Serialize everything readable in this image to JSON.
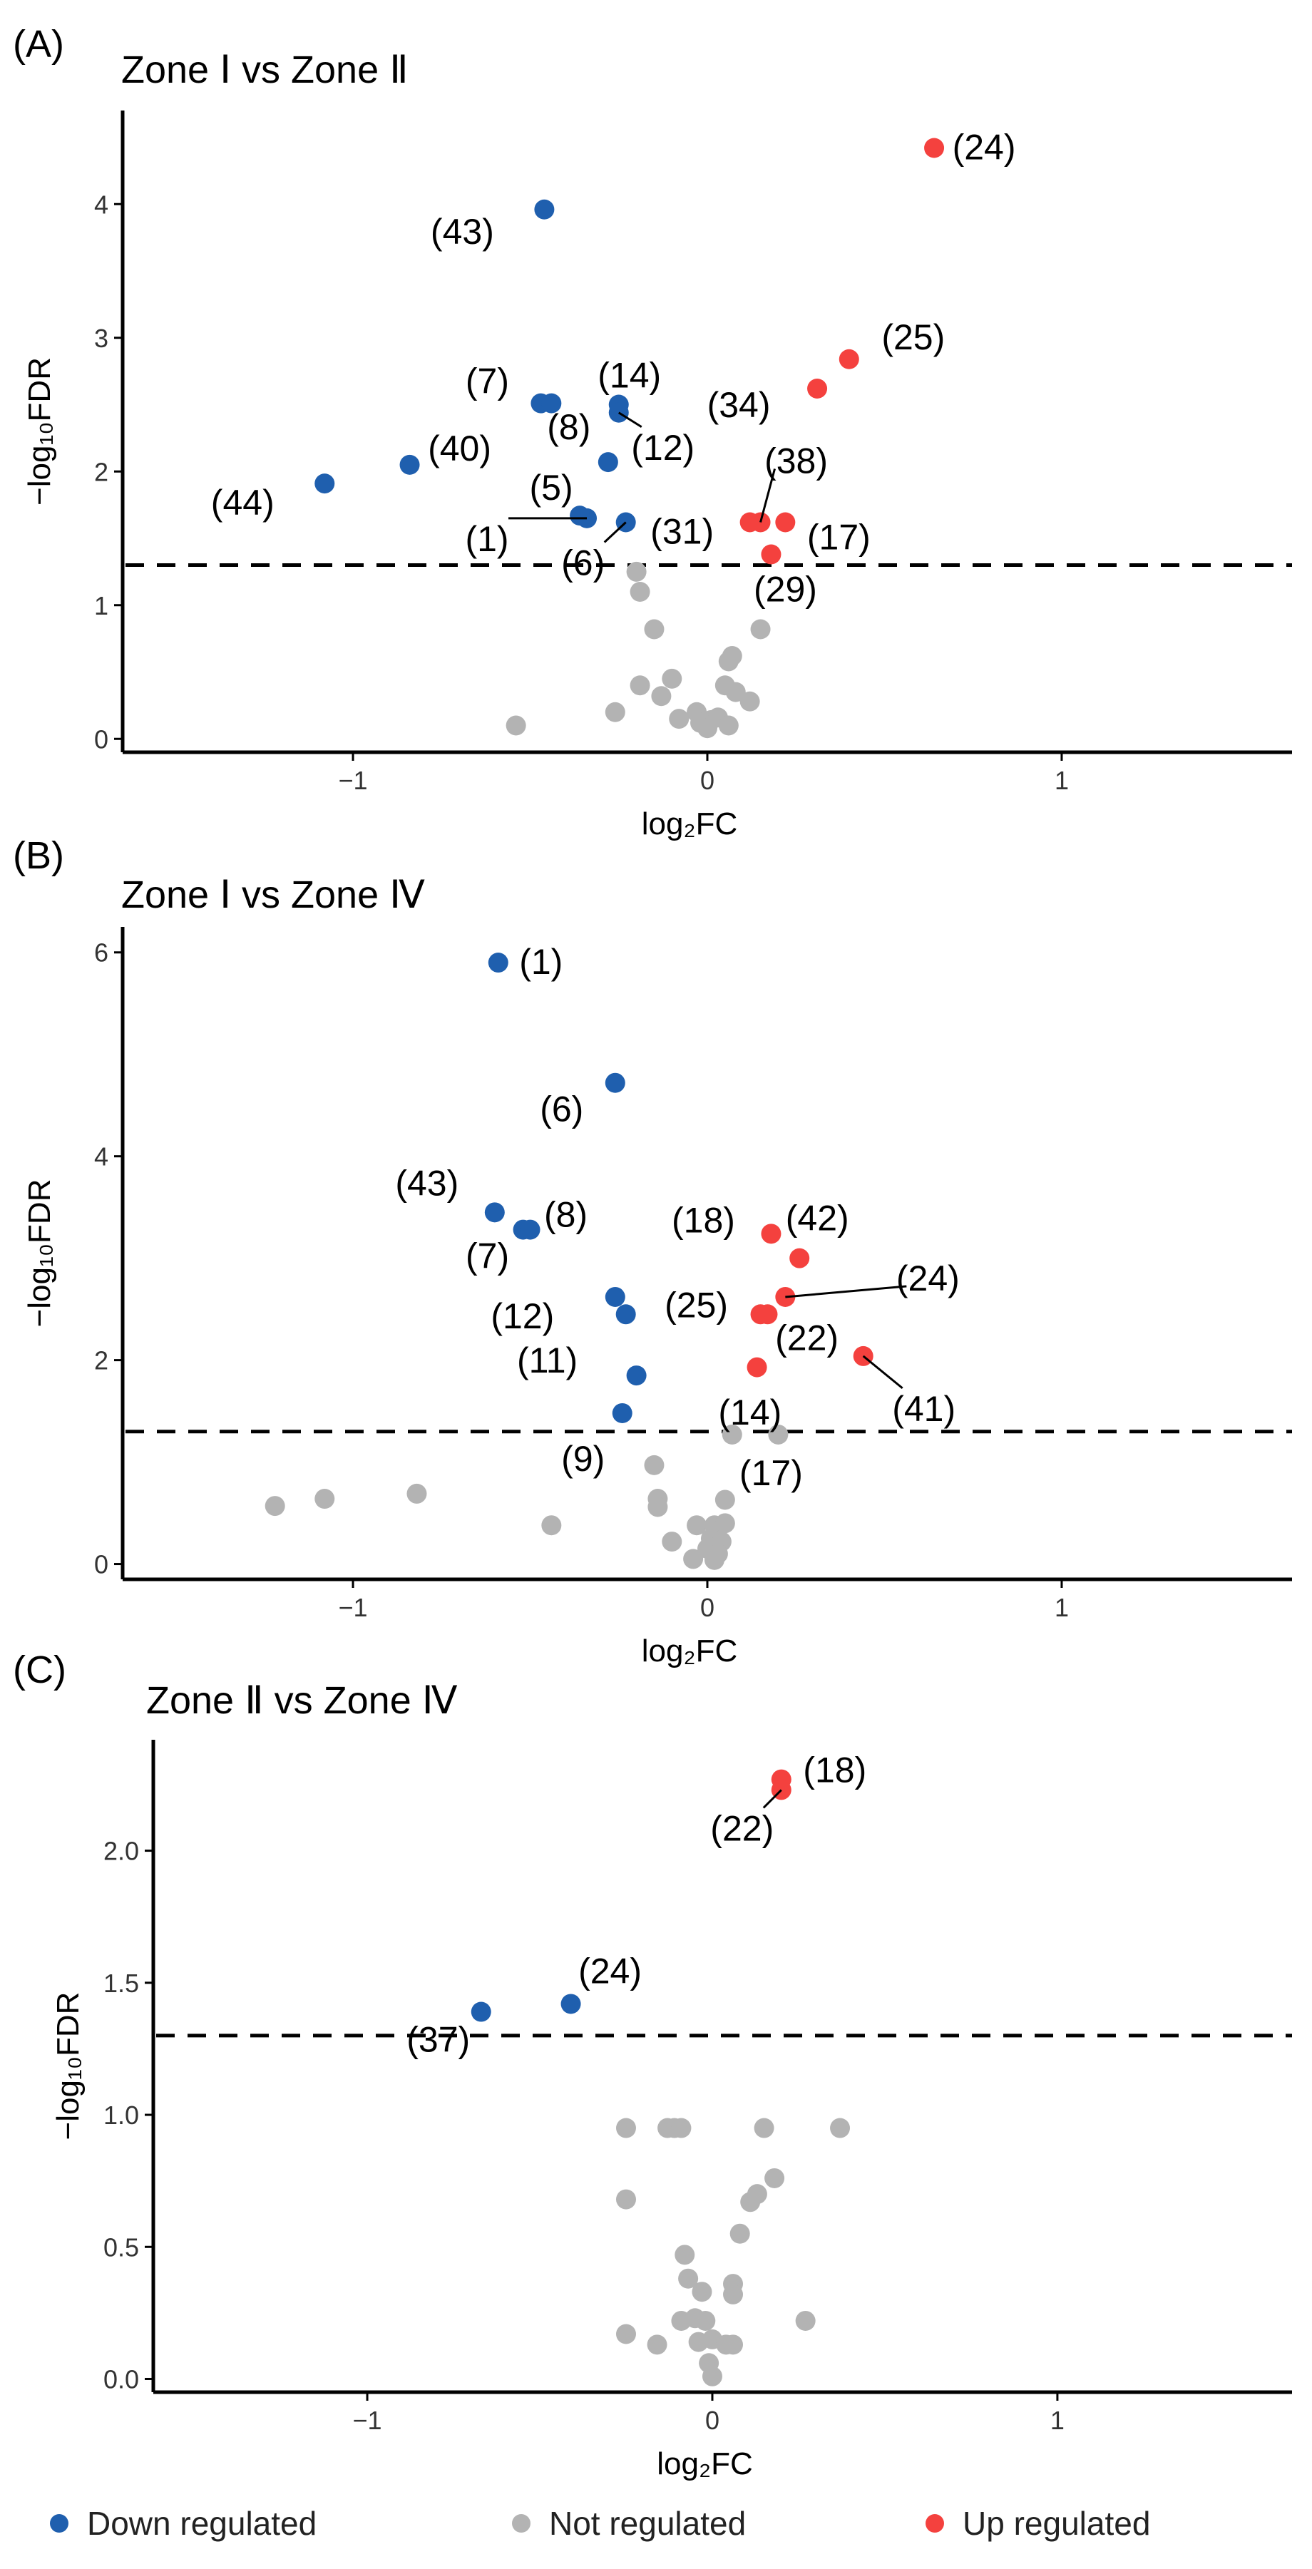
{
  "colors": {
    "down": "#1f5fae",
    "not": "#b3b3b3",
    "up": "#f4413e",
    "axis": "#000000"
  },
  "legend": {
    "down_label": "Down regulated",
    "not_label": "Not regulated",
    "up_label": "Up regulated"
  },
  "chart_data": [
    {
      "type": "scatter",
      "panel_label": "(A)",
      "title": "Zone Ⅰ  vs Zone Ⅱ",
      "xlabel": "log₂FC",
      "ylabel": "−log₁₀FDR",
      "xlim": [
        -1.65,
        1.65
      ],
      "ylim": [
        -0.1,
        4.7
      ],
      "xticks": [
        -1,
        0,
        1
      ],
      "yticks": [
        0,
        1,
        2,
        3,
        4
      ],
      "threshold": 1.3,
      "points": [
        {
          "x": 0.64,
          "y": 4.42,
          "cls": "up",
          "label": "(24)"
        },
        {
          "x": -0.46,
          "y": 3.96,
          "cls": "down",
          "label": "(43)"
        },
        {
          "x": 0.4,
          "y": 2.84,
          "cls": "up",
          "label": "(25)"
        },
        {
          "x": 0.31,
          "y": 2.62,
          "cls": "up",
          "label": "(34)"
        },
        {
          "x": -0.47,
          "y": 2.51,
          "cls": "down",
          "label": "(7)"
        },
        {
          "x": -0.44,
          "y": 2.51,
          "cls": "down",
          "label": ""
        },
        {
          "x": -0.25,
          "y": 2.5,
          "cls": "down",
          "label": "(14)"
        },
        {
          "x": -0.25,
          "y": 2.44,
          "cls": "down",
          "label": "(12)"
        },
        {
          "x": -0.28,
          "y": 2.07,
          "cls": "down",
          "label": "(8)"
        },
        {
          "x": -0.84,
          "y": 2.05,
          "cls": "down",
          "label": "(40)"
        },
        {
          "x": -1.08,
          "y": 1.91,
          "cls": "down",
          "label": "(44)"
        },
        {
          "x": -0.34,
          "y": 1.65,
          "cls": "down",
          "label": "(1)"
        },
        {
          "x": -0.36,
          "y": 1.67,
          "cls": "down",
          "label": "(5)"
        },
        {
          "x": -0.23,
          "y": 1.62,
          "cls": "down",
          "label": "(6)"
        },
        {
          "x": 0.12,
          "y": 1.62,
          "cls": "up",
          "label": "(31)"
        },
        {
          "x": 0.15,
          "y": 1.62,
          "cls": "up",
          "label": "(38)"
        },
        {
          "x": 0.22,
          "y": 1.62,
          "cls": "up",
          "label": "(17)"
        },
        {
          "x": 0.18,
          "y": 1.38,
          "cls": "up",
          "label": "(29)"
        },
        {
          "x": -0.2,
          "y": 1.25,
          "cls": "not",
          "label": ""
        },
        {
          "x": -0.19,
          "y": 1.1,
          "cls": "not",
          "label": ""
        },
        {
          "x": -0.15,
          "y": 0.82,
          "cls": "not",
          "label": ""
        },
        {
          "x": 0.15,
          "y": 0.82,
          "cls": "not",
          "label": ""
        },
        {
          "x": 0.06,
          "y": 0.58,
          "cls": "not",
          "label": ""
        },
        {
          "x": 0.07,
          "y": 0.62,
          "cls": "not",
          "label": ""
        },
        {
          "x": -0.1,
          "y": 0.45,
          "cls": "not",
          "label": ""
        },
        {
          "x": -0.19,
          "y": 0.4,
          "cls": "not",
          "label": ""
        },
        {
          "x": 0.05,
          "y": 0.4,
          "cls": "not",
          "label": ""
        },
        {
          "x": -0.13,
          "y": 0.32,
          "cls": "not",
          "label": ""
        },
        {
          "x": 0.08,
          "y": 0.35,
          "cls": "not",
          "label": ""
        },
        {
          "x": 0.12,
          "y": 0.28,
          "cls": "not",
          "label": ""
        },
        {
          "x": -0.26,
          "y": 0.2,
          "cls": "not",
          "label": ""
        },
        {
          "x": -0.08,
          "y": 0.15,
          "cls": "not",
          "label": ""
        },
        {
          "x": -0.03,
          "y": 0.2,
          "cls": "not",
          "label": ""
        },
        {
          "x": -0.02,
          "y": 0.12,
          "cls": "not",
          "label": ""
        },
        {
          "x": 0.01,
          "y": 0.14,
          "cls": "not",
          "label": ""
        },
        {
          "x": 0.03,
          "y": 0.16,
          "cls": "not",
          "label": ""
        },
        {
          "x": 0.06,
          "y": 0.1,
          "cls": "not",
          "label": ""
        },
        {
          "x": -0.54,
          "y": 0.1,
          "cls": "not",
          "label": ""
        },
        {
          "x": 0.0,
          "y": 0.08,
          "cls": "not",
          "label": ""
        }
      ]
    },
    {
      "type": "scatter",
      "panel_label": "(B)",
      "title": "Zone Ⅰ  vs Zone Ⅳ",
      "xlabel": "log₂FC",
      "ylabel": "−log₁₀FDR",
      "xlim": [
        -1.65,
        1.65
      ],
      "ylim": [
        -0.15,
        6.25
      ],
      "xticks": [
        -1,
        0,
        1
      ],
      "yticks": [
        0,
        2,
        4,
        6
      ],
      "threshold": 1.3,
      "points": [
        {
          "x": -0.59,
          "y": 5.9,
          "cls": "down",
          "label": "(1)"
        },
        {
          "x": -0.26,
          "y": 4.72,
          "cls": "down",
          "label": "(6)"
        },
        {
          "x": -0.6,
          "y": 3.45,
          "cls": "down",
          "label": "(43)"
        },
        {
          "x": -0.52,
          "y": 3.28,
          "cls": "down",
          "label": "(7)"
        },
        {
          "x": -0.5,
          "y": 3.28,
          "cls": "down",
          "label": "(8)"
        },
        {
          "x": 0.18,
          "y": 3.24,
          "cls": "up",
          "label": "(18)"
        },
        {
          "x": 0.26,
          "y": 3.0,
          "cls": "up",
          "label": "(42)"
        },
        {
          "x": -0.26,
          "y": 2.62,
          "cls": "down",
          "label": "(12)"
        },
        {
          "x": 0.22,
          "y": 2.62,
          "cls": "up",
          "label": "(24)"
        },
        {
          "x": -0.23,
          "y": 2.45,
          "cls": "down",
          "label": ""
        },
        {
          "x": 0.15,
          "y": 2.45,
          "cls": "up",
          "label": "(25)"
        },
        {
          "x": 0.17,
          "y": 2.45,
          "cls": "up",
          "label": ""
        },
        {
          "x": 0.44,
          "y": 2.04,
          "cls": "up",
          "label": "(41)"
        },
        {
          "x": 0.14,
          "y": 1.93,
          "cls": "up",
          "label": "(22)"
        },
        {
          "x": -0.2,
          "y": 1.85,
          "cls": "down",
          "label": "(11)"
        },
        {
          "x": -0.24,
          "y": 1.48,
          "cls": "down",
          "label": "(9)"
        },
        {
          "x": 0.07,
          "y": 1.27,
          "cls": "not",
          "label": "(14)"
        },
        {
          "x": 0.2,
          "y": 1.27,
          "cls": "not",
          "label": "(17)"
        },
        {
          "x": -0.15,
          "y": 0.97,
          "cls": "not",
          "label": ""
        },
        {
          "x": -1.22,
          "y": 0.57,
          "cls": "not",
          "label": ""
        },
        {
          "x": -1.08,
          "y": 0.64,
          "cls": "not",
          "label": ""
        },
        {
          "x": -0.82,
          "y": 0.69,
          "cls": "not",
          "label": ""
        },
        {
          "x": -0.14,
          "y": 0.64,
          "cls": "not",
          "label": ""
        },
        {
          "x": -0.14,
          "y": 0.56,
          "cls": "not",
          "label": ""
        },
        {
          "x": 0.05,
          "y": 0.63,
          "cls": "not",
          "label": ""
        },
        {
          "x": -0.44,
          "y": 0.38,
          "cls": "not",
          "label": ""
        },
        {
          "x": -0.03,
          "y": 0.38,
          "cls": "not",
          "label": ""
        },
        {
          "x": 0.02,
          "y": 0.38,
          "cls": "not",
          "label": ""
        },
        {
          "x": 0.05,
          "y": 0.4,
          "cls": "not",
          "label": ""
        },
        {
          "x": -0.1,
          "y": 0.22,
          "cls": "not",
          "label": ""
        },
        {
          "x": 0.01,
          "y": 0.25,
          "cls": "not",
          "label": ""
        },
        {
          "x": 0.04,
          "y": 0.22,
          "cls": "not",
          "label": ""
        },
        {
          "x": 0.0,
          "y": 0.15,
          "cls": "not",
          "label": ""
        },
        {
          "x": 0.03,
          "y": 0.1,
          "cls": "not",
          "label": ""
        },
        {
          "x": -0.04,
          "y": 0.05,
          "cls": "not",
          "label": ""
        },
        {
          "x": 0.02,
          "y": 0.04,
          "cls": "not",
          "label": ""
        }
      ]
    },
    {
      "type": "scatter",
      "panel_label": "(C)",
      "title": "Zone Ⅱ  vs Zone Ⅳ",
      "xlabel": "log₂FC",
      "ylabel": "−log₁₀FDR",
      "xlim": [
        -1.62,
        1.68
      ],
      "ylim": [
        -0.05,
        2.42
      ],
      "xticks": [
        -1,
        0,
        1
      ],
      "yticks": [
        0.0,
        0.5,
        1.0,
        1.5,
        2.0
      ],
      "threshold": 1.3,
      "points": [
        {
          "x": 0.2,
          "y": 2.27,
          "cls": "up",
          "label": "(18)"
        },
        {
          "x": 0.2,
          "y": 2.23,
          "cls": "up",
          "label": "(22)"
        },
        {
          "x": -0.41,
          "y": 1.42,
          "cls": "down",
          "label": "(24)"
        },
        {
          "x": -0.67,
          "y": 1.39,
          "cls": "down",
          "label": "(37)"
        },
        {
          "x": -0.25,
          "y": 0.95,
          "cls": "not",
          "label": ""
        },
        {
          "x": -0.13,
          "y": 0.95,
          "cls": "not",
          "label": ""
        },
        {
          "x": -0.11,
          "y": 0.95,
          "cls": "not",
          "label": ""
        },
        {
          "x": -0.09,
          "y": 0.95,
          "cls": "not",
          "label": ""
        },
        {
          "x": 0.15,
          "y": 0.95,
          "cls": "not",
          "label": ""
        },
        {
          "x": 0.37,
          "y": 0.95,
          "cls": "not",
          "label": ""
        },
        {
          "x": 0.18,
          "y": 0.76,
          "cls": "not",
          "label": ""
        },
        {
          "x": -0.25,
          "y": 0.68,
          "cls": "not",
          "label": ""
        },
        {
          "x": 0.11,
          "y": 0.67,
          "cls": "not",
          "label": ""
        },
        {
          "x": 0.13,
          "y": 0.7,
          "cls": "not",
          "label": ""
        },
        {
          "x": 0.08,
          "y": 0.55,
          "cls": "not",
          "label": ""
        },
        {
          "x": -0.08,
          "y": 0.47,
          "cls": "not",
          "label": ""
        },
        {
          "x": -0.07,
          "y": 0.38,
          "cls": "not",
          "label": ""
        },
        {
          "x": -0.03,
          "y": 0.33,
          "cls": "not",
          "label": ""
        },
        {
          "x": 0.06,
          "y": 0.36,
          "cls": "not",
          "label": ""
        },
        {
          "x": 0.06,
          "y": 0.32,
          "cls": "not",
          "label": ""
        },
        {
          "x": -0.09,
          "y": 0.22,
          "cls": "not",
          "label": ""
        },
        {
          "x": -0.05,
          "y": 0.23,
          "cls": "not",
          "label": ""
        },
        {
          "x": -0.02,
          "y": 0.22,
          "cls": "not",
          "label": ""
        },
        {
          "x": 0.27,
          "y": 0.22,
          "cls": "not",
          "label": ""
        },
        {
          "x": -0.25,
          "y": 0.17,
          "cls": "not",
          "label": ""
        },
        {
          "x": -0.16,
          "y": 0.13,
          "cls": "not",
          "label": ""
        },
        {
          "x": -0.04,
          "y": 0.14,
          "cls": "not",
          "label": ""
        },
        {
          "x": 0.0,
          "y": 0.15,
          "cls": "not",
          "label": ""
        },
        {
          "x": 0.04,
          "y": 0.13,
          "cls": "not",
          "label": ""
        },
        {
          "x": 0.06,
          "y": 0.13,
          "cls": "not",
          "label": ""
        },
        {
          "x": -0.01,
          "y": 0.06,
          "cls": "not",
          "label": ""
        },
        {
          "x": 0.0,
          "y": 0.01,
          "cls": "not",
          "label": ""
        }
      ]
    }
  ]
}
